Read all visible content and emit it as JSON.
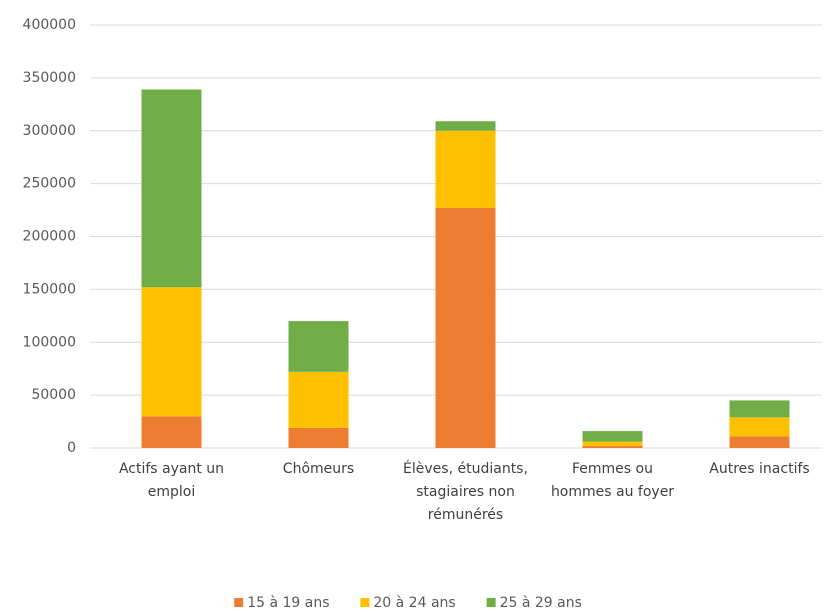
{
  "chart_data": {
    "type": "stacked_bar",
    "categories": [
      "Actifs ayant un emploi",
      "Chômeurs",
      "Élèves, étudiants, stagiaires non rémunérés",
      "Femmes ou hommes au foyer",
      "Autres inactifs"
    ],
    "series": [
      {
        "name": "15 à 19 ans",
        "color": "#ed7d31",
        "values": [
          30000,
          19000,
          227000,
          2000,
          11000
        ]
      },
      {
        "name": "20 à 24 ans",
        "color": "#ffc000",
        "values": [
          122000,
          53000,
          73000,
          4000,
          18000
        ]
      },
      {
        "name": "25 à 29 ans",
        "color": "#70ad47",
        "values": [
          187000,
          48000,
          9000,
          10000,
          16000
        ]
      }
    ],
    "ylim": [
      0,
      400000
    ],
    "yticks": [
      0,
      50000,
      100000,
      150000,
      200000,
      250000,
      300000,
      350000,
      400000
    ],
    "grid": true,
    "legend": "bottom"
  }
}
